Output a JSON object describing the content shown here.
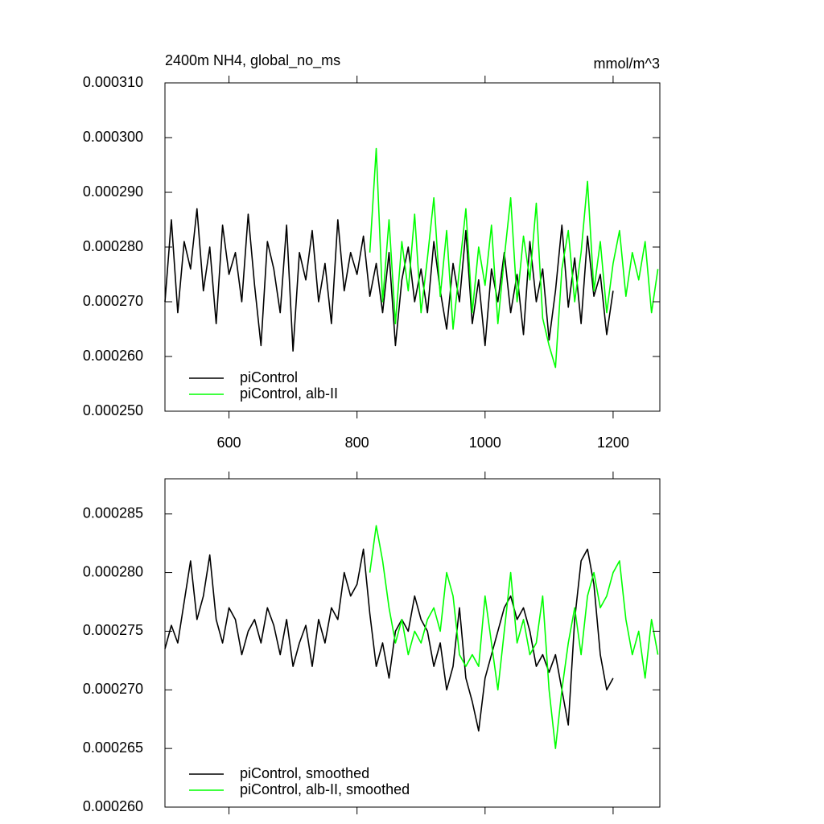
{
  "chart_data": [
    {
      "type": "line",
      "title": "2400m NH4, global_no_ms",
      "units": "mmol/m^3",
      "xlim": [
        500,
        1273
      ],
      "xticks": [
        600,
        800,
        1000,
        1200
      ],
      "xtick_labels": true,
      "ylim": [
        0.00025,
        0.00031
      ],
      "yticks": [
        {
          "value": 0.00025,
          "label": "0.000250"
        },
        {
          "value": 0.00026,
          "label": "0.000260"
        },
        {
          "value": 0.00027,
          "label": "0.000270"
        },
        {
          "value": 0.00028,
          "label": "0.000280"
        },
        {
          "value": 0.00029,
          "label": "0.000290"
        },
        {
          "value": 0.0003,
          "label": "0.000300"
        },
        {
          "value": 0.00031,
          "label": "0.000310"
        }
      ],
      "legend": "lower left",
      "series": [
        {
          "name": "piControl",
          "color": "#000000",
          "x": [
            500,
            510,
            520,
            530,
            540,
            550,
            560,
            570,
            580,
            590,
            600,
            610,
            620,
            630,
            640,
            650,
            660,
            670,
            680,
            690,
            700,
            710,
            720,
            730,
            740,
            750,
            760,
            770,
            780,
            790,
            800,
            810,
            820,
            830,
            840,
            850,
            860,
            870,
            880,
            890,
            900,
            910,
            920,
            930,
            940,
            950,
            960,
            970,
            980,
            990,
            1000,
            1010,
            1020,
            1030,
            1040,
            1050,
            1060,
            1070,
            1080,
            1090,
            1100,
            1110,
            1120,
            1130,
            1140,
            1150,
            1160,
            1170,
            1180,
            1190,
            1200
          ],
          "values": [
            0.00027,
            0.000285,
            0.000268,
            0.000281,
            0.000276,
            0.000287,
            0.000272,
            0.00028,
            0.000266,
            0.000284,
            0.000275,
            0.000279,
            0.00027,
            0.000286,
            0.000273,
            0.000262,
            0.000281,
            0.000276,
            0.000268,
            0.000284,
            0.000261,
            0.000279,
            0.000274,
            0.000283,
            0.00027,
            0.000277,
            0.000266,
            0.000285,
            0.000272,
            0.000279,
            0.000275,
            0.000282,
            0.000271,
            0.000277,
            0.000268,
            0.000279,
            0.000262,
            0.000274,
            0.00028,
            0.00027,
            0.000276,
            0.000268,
            0.000281,
            0.000272,
            0.000265,
            0.000277,
            0.00027,
            0.000283,
            0.000266,
            0.000274,
            0.000262,
            0.000276,
            0.00027,
            0.000279,
            0.000268,
            0.000275,
            0.000264,
            0.000281,
            0.00027,
            0.000276,
            0.000263,
            0.000272,
            0.000284,
            0.000269,
            0.000278,
            0.000266,
            0.000282,
            0.000271,
            0.000275,
            0.000264,
            0.000272
          ]
        },
        {
          "name": "piControl, alb-II",
          "color": "#00ff00",
          "x": [
            820,
            830,
            840,
            850,
            860,
            870,
            880,
            890,
            900,
            910,
            920,
            930,
            940,
            950,
            960,
            970,
            980,
            990,
            1000,
            1010,
            1020,
            1030,
            1040,
            1050,
            1060,
            1070,
            1080,
            1090,
            1100,
            1110,
            1120,
            1130,
            1140,
            1150,
            1160,
            1170,
            1180,
            1190,
            1200,
            1210,
            1220,
            1230,
            1240,
            1250,
            1260,
            1270
          ],
          "values": [
            0.000279,
            0.000298,
            0.00027,
            0.000285,
            0.000266,
            0.000281,
            0.000272,
            0.000286,
            0.000268,
            0.000278,
            0.000289,
            0.000271,
            0.000283,
            0.000265,
            0.000276,
            0.000287,
            0.000268,
            0.00028,
            0.000273,
            0.000284,
            0.000266,
            0.000278,
            0.000289,
            0.00027,
            0.000282,
            0.000274,
            0.000288,
            0.000267,
            0.000262,
            0.000258,
            0.000276,
            0.000283,
            0.00027,
            0.000279,
            0.000292,
            0.000272,
            0.000281,
            0.000268,
            0.000277,
            0.000283,
            0.000271,
            0.000279,
            0.000274,
            0.000281,
            0.000268,
            0.000276
          ]
        }
      ]
    },
    {
      "type": "line",
      "xlim": [
        500,
        1273
      ],
      "xticks": [
        600,
        800,
        1000,
        1200
      ],
      "xtick_labels": false,
      "ylim": [
        0.00026,
        0.000288
      ],
      "yticks": [
        {
          "value": 0.00026,
          "label": "0.000260"
        },
        {
          "value": 0.000265,
          "label": "0.000265"
        },
        {
          "value": 0.00027,
          "label": "0.000270"
        },
        {
          "value": 0.000275,
          "label": "0.000275"
        },
        {
          "value": 0.00028,
          "label": "0.000280"
        },
        {
          "value": 0.000285,
          "label": "0.000285"
        }
      ],
      "legend": "lower left",
      "series": [
        {
          "name": "piControl, smoothed",
          "color": "#000000",
          "x": [
            500,
            510,
            520,
            530,
            540,
            550,
            560,
            570,
            580,
            590,
            600,
            610,
            620,
            630,
            640,
            650,
            660,
            670,
            680,
            690,
            700,
            710,
            720,
            730,
            740,
            750,
            760,
            770,
            780,
            790,
            800,
            810,
            820,
            830,
            840,
            850,
            860,
            870,
            880,
            890,
            900,
            910,
            920,
            930,
            940,
            950,
            960,
            970,
            980,
            990,
            1000,
            1010,
            1020,
            1030,
            1040,
            1050,
            1060,
            1070,
            1080,
            1090,
            1100,
            1110,
            1120,
            1130,
            1140,
            1150,
            1160,
            1170,
            1180,
            1190,
            1200
          ],
          "values": [
            0.0002735,
            0.0002755,
            0.000274,
            0.0002775,
            0.000281,
            0.000276,
            0.000278,
            0.0002815,
            0.000276,
            0.000274,
            0.000277,
            0.000276,
            0.000273,
            0.000275,
            0.000276,
            0.000274,
            0.000277,
            0.0002755,
            0.000273,
            0.000276,
            0.000272,
            0.000274,
            0.0002755,
            0.000272,
            0.000276,
            0.000274,
            0.000277,
            0.000276,
            0.00028,
            0.000278,
            0.000279,
            0.000282,
            0.0002765,
            0.000272,
            0.000274,
            0.000271,
            0.000275,
            0.000276,
            0.000275,
            0.000278,
            0.000276,
            0.000275,
            0.000272,
            0.000274,
            0.00027,
            0.000272,
            0.000277,
            0.000271,
            0.000269,
            0.0002665,
            0.000271,
            0.000273,
            0.000275,
            0.000277,
            0.000278,
            0.000276,
            0.000277,
            0.000275,
            0.000272,
            0.000273,
            0.0002715,
            0.000273,
            0.00027,
            0.000267,
            0.000276,
            0.000281,
            0.000282,
            0.000279,
            0.000273,
            0.00027,
            0.000271
          ]
        },
        {
          "name": "piControl, alb-II, smoothed",
          "color": "#00ff00",
          "x": [
            820,
            830,
            840,
            850,
            860,
            870,
            880,
            890,
            900,
            910,
            920,
            930,
            940,
            950,
            960,
            970,
            980,
            990,
            1000,
            1010,
            1020,
            1030,
            1040,
            1050,
            1060,
            1070,
            1080,
            1090,
            1100,
            1110,
            1120,
            1130,
            1140,
            1150,
            1160,
            1170,
            1180,
            1190,
            1200,
            1210,
            1220,
            1230,
            1240,
            1250,
            1260,
            1270
          ],
          "values": [
            0.00028,
            0.000284,
            0.000281,
            0.000277,
            0.000274,
            0.000276,
            0.000273,
            0.000275,
            0.000274,
            0.000276,
            0.000277,
            0.000275,
            0.00028,
            0.000278,
            0.000273,
            0.000272,
            0.000273,
            0.000272,
            0.000278,
            0.000274,
            0.00027,
            0.000275,
            0.00028,
            0.000274,
            0.000276,
            0.000273,
            0.000274,
            0.000278,
            0.00027,
            0.000265,
            0.00027,
            0.000274,
            0.000277,
            0.000273,
            0.000278,
            0.00028,
            0.000277,
            0.000278,
            0.00028,
            0.000281,
            0.000276,
            0.000273,
            0.000275,
            0.000271,
            0.000276,
            0.000273
          ]
        }
      ]
    }
  ]
}
